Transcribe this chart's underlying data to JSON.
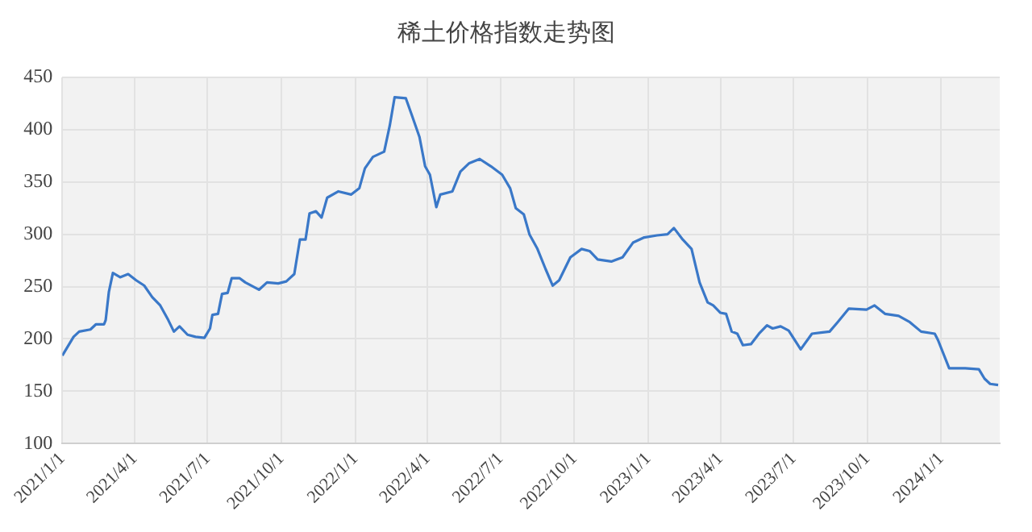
{
  "chart_data": {
    "type": "line",
    "title": "稀土价格指数走势图",
    "x": [
      "2021-01-01",
      "2021-01-15",
      "2021-01-22",
      "2021-02-05",
      "2021-02-12",
      "2021-02-22",
      "2021-02-24",
      "2021-02-28",
      "2021-03-05",
      "2021-03-14",
      "2021-03-24",
      "2021-04-03",
      "2021-04-13",
      "2021-04-23",
      "2021-05-03",
      "2021-05-13",
      "2021-05-20",
      "2021-05-27",
      "2021-06-06",
      "2021-06-16",
      "2021-06-27",
      "2021-07-04",
      "2021-07-07",
      "2021-07-14",
      "2021-07-19",
      "2021-07-26",
      "2021-07-31",
      "2021-08-10",
      "2021-08-17",
      "2021-09-03",
      "2021-09-13",
      "2021-09-27",
      "2021-10-07",
      "2021-10-17",
      "2021-10-24",
      "2021-10-31",
      "2021-11-05",
      "2021-11-13",
      "2021-11-20",
      "2021-11-27",
      "2021-12-11",
      "2021-12-27",
      "2022-01-06",
      "2022-01-13",
      "2022-01-23",
      "2022-02-06",
      "2022-02-13",
      "2022-02-19",
      "2022-03-05",
      "2022-03-12",
      "2022-03-22",
      "2022-03-29",
      "2022-04-04",
      "2022-04-12",
      "2022-04-17",
      "2022-05-02",
      "2022-05-12",
      "2022-05-23",
      "2022-06-05",
      "2022-06-19",
      "2022-07-03",
      "2022-07-13",
      "2022-07-20",
      "2022-07-30",
      "2022-08-06",
      "2022-08-16",
      "2022-08-26",
      "2022-09-04",
      "2022-09-12",
      "2022-09-26",
      "2022-10-10",
      "2022-10-20",
      "2022-10-30",
      "2022-11-16",
      "2022-11-30",
      "2022-12-13",
      "2022-12-27",
      "2023-01-12",
      "2023-01-25",
      "2023-02-02",
      "2023-02-13",
      "2023-02-24",
      "2023-03-06",
      "2023-03-16",
      "2023-03-23",
      "2023-04-01",
      "2023-04-08",
      "2023-04-15",
      "2023-04-22",
      "2023-04-29",
      "2023-05-09",
      "2023-05-19",
      "2023-05-29",
      "2023-06-05",
      "2023-06-15",
      "2023-06-25",
      "2023-07-10",
      "2023-07-24",
      "2023-08-15",
      "2023-08-25",
      "2023-09-08",
      "2023-09-30",
      "2023-10-10",
      "2023-10-23",
      "2023-11-09",
      "2023-11-23",
      "2023-12-07",
      "2023-12-24",
      "2023-12-28",
      "2024-01-11",
      "2024-01-31",
      "2024-02-17",
      "2024-02-24",
      "2024-03-02",
      "2024-03-12"
    ],
    "series": [
      {
        "color": "#3a78c8",
        "values": [
          184,
          202,
          207,
          209,
          214,
          214,
          218,
          245,
          263,
          259,
          262,
          256,
          251,
          240,
          232,
          218,
          207,
          212,
          204,
          202,
          201,
          210,
          223,
          224,
          243,
          244,
          258,
          258,
          254,
          247,
          254,
          253,
          255,
          262,
          295,
          295,
          320,
          322,
          316,
          335,
          341,
          338,
          344,
          363,
          374,
          379,
          404,
          431,
          430,
          415,
          393,
          365,
          357,
          326,
          338,
          341,
          360,
          368,
          372,
          365,
          357,
          344,
          325,
          319,
          300,
          286,
          267,
          251,
          256,
          278,
          286,
          284,
          276,
          274,
          278,
          292,
          297,
          299,
          300,
          306,
          295,
          286,
          254,
          235,
          232,
          225,
          224,
          207,
          205,
          194,
          195,
          205,
          213,
          210,
          212,
          208,
          190,
          205,
          207,
          216,
          229,
          228,
          232,
          224,
          222,
          216,
          207,
          205,
          199,
          172,
          172,
          171,
          162,
          157,
          156
        ]
      }
    ],
    "xlim": [
      "2021-01-01",
      "2024-03-14"
    ],
    "xticks": [
      {
        "value": "2021-01-01",
        "label": "2021/1/1"
      },
      {
        "value": "2021-04-01",
        "label": "2021/4/1"
      },
      {
        "value": "2021-07-01",
        "label": "2021/7/1"
      },
      {
        "value": "2021-10-01",
        "label": "2021/10/1"
      },
      {
        "value": "2022-01-01",
        "label": "2022/1/1"
      },
      {
        "value": "2022-04-01",
        "label": "2022/4/1"
      },
      {
        "value": "2022-07-01",
        "label": "2022/7/1"
      },
      {
        "value": "2022-10-01",
        "label": "2022/10/1"
      },
      {
        "value": "2023-01-01",
        "label": "2023/1/1"
      },
      {
        "value": "2023-04-01",
        "label": "2023/4/1"
      },
      {
        "value": "2023-07-01",
        "label": "2023/7/1"
      },
      {
        "value": "2023-10-01",
        "label": "2023/10/1"
      },
      {
        "value": "2024-01-01",
        "label": "2024/1/1"
      }
    ],
    "ylim": [
      100,
      450
    ],
    "yticks": [
      100,
      150,
      200,
      250,
      300,
      350,
      400,
      450
    ],
    "grid": true,
    "marker": "none",
    "line_style": "solid"
  }
}
